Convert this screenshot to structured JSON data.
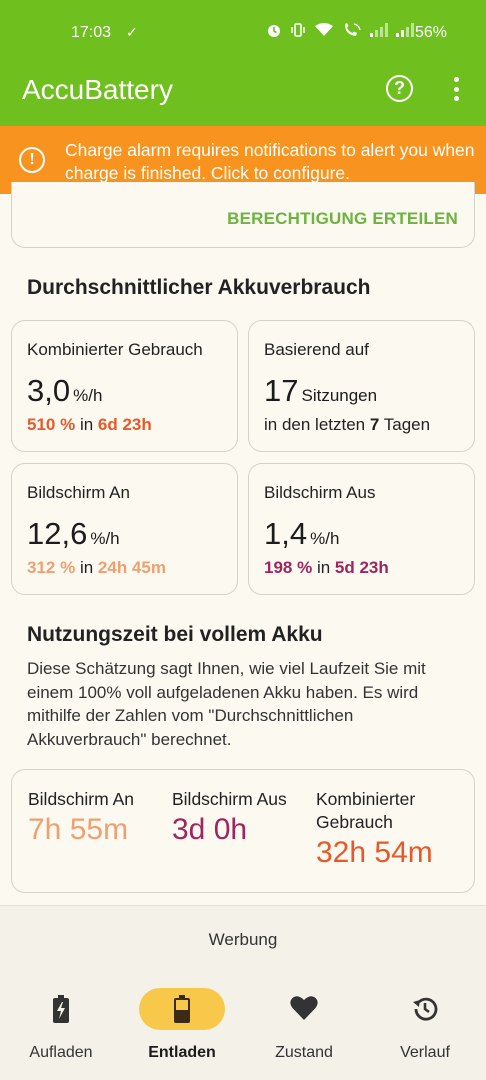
{
  "status": {
    "time": "17:03",
    "battery_pct": "56%",
    "icons": [
      "alarm-icon",
      "vibrate-icon",
      "wifi-icon",
      "wifi-call-icon",
      "signal-icon",
      "signal-icon"
    ]
  },
  "app": {
    "title": "AccuBattery",
    "accent": "#6fbf1f"
  },
  "alert": {
    "text": "Charge alarm requires notifications to alert you when charge is finished. Click to configure.",
    "color": "#f7931e"
  },
  "permission": {
    "button": "BERECHTIGUNG ERTEILEN"
  },
  "usage": {
    "heading": "Durchschnittlicher Akkuverbrauch",
    "combined": {
      "label": "Kombinierter Gebrauch",
      "value": "3,0",
      "unit": "%/h",
      "pct": "510 %",
      "in": "in",
      "duration": "6d 23h",
      "color": "#e8592a"
    },
    "based": {
      "label": "Basierend auf",
      "value": "17",
      "unit": "Sitzungen",
      "pre": "in den letzten",
      "days": "7",
      "post": "Tagen"
    },
    "screen_on": {
      "label": "Bildschirm An",
      "value": "12,6",
      "unit": "%/h",
      "pct": "312 %",
      "in": "in",
      "duration": "24h 45m",
      "color": "#f0a070"
    },
    "screen_off": {
      "label": "Bildschirm Aus",
      "value": "1,4",
      "unit": "%/h",
      "pct": "198 %",
      "in": "in",
      "duration": "5d 23h",
      "color": "#a0245e"
    }
  },
  "fullcharge": {
    "heading": "Nutzungszeit bei vollem Akku",
    "desc": "Diese Schätzung sagt Ihnen, wie viel Laufzeit Sie mit einem 100% voll aufgeladenen Akku haben. Es wird mithilfe der Zahlen vom \"Durchschnittlichen Akkuverbrauch\" berechnet.",
    "screen_on": {
      "label": "Bildschirm An",
      "value": "7h 55m"
    },
    "screen_off": {
      "label": "Bildschirm Aus",
      "value": "3d 0h"
    },
    "combined": {
      "label": "Kombinierter Gebrauch",
      "value": "32h 54m"
    }
  },
  "ads": {
    "label": "Werbung"
  },
  "nav": [
    {
      "label": "Aufladen",
      "icon": "battery-charging-icon"
    },
    {
      "label": "Entladen",
      "icon": "battery-discharging-icon",
      "active": true
    },
    {
      "label": "Zustand",
      "icon": "heart-icon"
    },
    {
      "label": "Verlauf",
      "icon": "history-icon"
    }
  ]
}
